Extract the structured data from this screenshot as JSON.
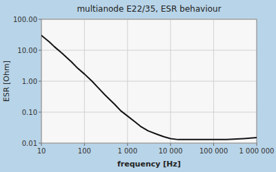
{
  "chart_data": {
    "type": "line",
    "log": true,
    "grid": true,
    "title": "multianode E22/35, ESR behaviour",
    "xlabel": "frequency [Hz]",
    "ylabel": "ESR [Ohm]",
    "color": "#111111",
    "xlim": [
      10,
      1000000
    ],
    "ylim": [
      0.01,
      100.0
    ],
    "xticks": [
      10,
      100,
      {
        "value": 1000,
        "label": "1 000"
      },
      {
        "value": 10000,
        "label": "10 000"
      },
      {
        "value": 100000,
        "label": "100 000"
      },
      {
        "value": 1000000,
        "label": "1 000 000"
      }
    ],
    "yticks": [
      0.01,
      {
        "value": 0.1,
        "label": "0.10"
      },
      {
        "value": 1.0,
        "label": "1.00"
      },
      {
        "value": 10.0,
        "label": "10.00"
      },
      {
        "value": 100.0,
        "label": "100.00"
      }
    ],
    "x": [
      10,
      15,
      20,
      30,
      50,
      70,
      100,
      150,
      200,
      300,
      500,
      700,
      1000,
      1500,
      2000,
      3000,
      5000,
      7000,
      10000,
      15000,
      20000,
      50000,
      100000,
      200000,
      500000,
      1000000
    ],
    "values": [
      30.0,
      19.0,
      13.0,
      8.0,
      4.2,
      2.6,
      1.7,
      1.0,
      0.65,
      0.36,
      0.18,
      0.11,
      0.075,
      0.048,
      0.035,
      0.025,
      0.019,
      0.016,
      0.014,
      0.013,
      0.013,
      0.013,
      0.013,
      0.013,
      0.014,
      0.015
    ]
  }
}
